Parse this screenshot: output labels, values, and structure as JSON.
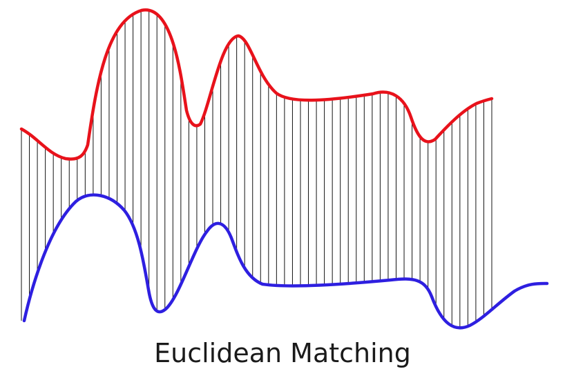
{
  "caption": "Euclidean Matching",
  "colors": {
    "series_a": "#e8121b",
    "series_b": "#2e1fe0",
    "connector": "#111111",
    "background": "#ffffff"
  },
  "diagram": {
    "type": "euclidean-matching",
    "description_label": "Euclidean Matching",
    "series": [
      {
        "name": "series-a",
        "color_key": "series_a"
      },
      {
        "name": "series-b",
        "color_key": "series_b"
      }
    ],
    "connector_count": 60
  }
}
